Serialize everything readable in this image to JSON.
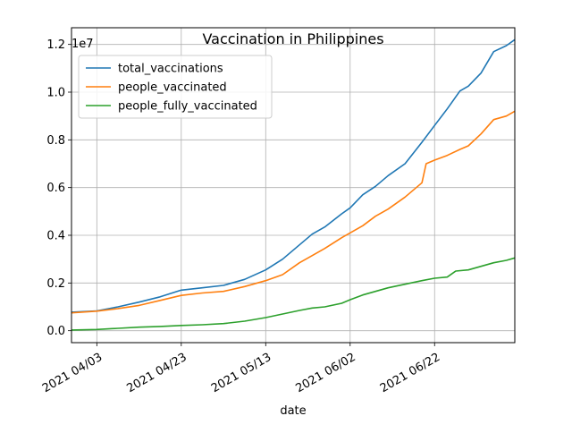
{
  "chart_data": {
    "type": "line",
    "title": "Vaccination in Philippines",
    "xlabel": "date",
    "ylabel": "",
    "y_offset_label": "1e7",
    "x_range": [
      "2021-03-28",
      "2021-07-11"
    ],
    "ylim": [
      -0.05,
      1.27
    ],
    "x_ticks": [
      {
        "date": "2021-04-03",
        "label": "2021 04/03"
      },
      {
        "date": "2021-04-23",
        "label": "2021 04/23"
      },
      {
        "date": "2021-05-13",
        "label": "2021 05/13"
      },
      {
        "date": "2021-06-02",
        "label": "2021 06/02"
      },
      {
        "date": "2021-06-22",
        "label": "2021 06/22"
      }
    ],
    "y_ticks": [
      {
        "value": 0.0,
        "label": "0.0"
      },
      {
        "value": 0.2,
        "label": "0.2"
      },
      {
        "value": 0.4,
        "label": "0.4"
      },
      {
        "value": 0.6,
        "label": "0.6"
      },
      {
        "value": 0.8,
        "label": "0.8"
      },
      {
        "value": 1.0,
        "label": "1.0"
      },
      {
        "value": 1.2,
        "label": "1.2"
      }
    ],
    "grid": true,
    "legend_position": "top-left",
    "series": [
      {
        "name": "total_vaccinations",
        "color": "#1f77b4",
        "points": [
          [
            "2021-03-28",
            0.078
          ],
          [
            "2021-04-03",
            0.083
          ],
          [
            "2021-04-08",
            0.1
          ],
          [
            "2021-04-13",
            0.12
          ],
          [
            "2021-04-18",
            0.142
          ],
          [
            "2021-04-23",
            0.17
          ],
          [
            "2021-04-28",
            0.18
          ],
          [
            "2021-05-03",
            0.19
          ],
          [
            "2021-05-08",
            0.215
          ],
          [
            "2021-05-13",
            0.255
          ],
          [
            "2021-05-17",
            0.3
          ],
          [
            "2021-05-21",
            0.36
          ],
          [
            "2021-05-24",
            0.405
          ],
          [
            "2021-05-27",
            0.435
          ],
          [
            "2021-05-31",
            0.49
          ],
          [
            "2021-06-02",
            0.515
          ],
          [
            "2021-06-05",
            0.57
          ],
          [
            "2021-06-08",
            0.605
          ],
          [
            "2021-06-11",
            0.65
          ],
          [
            "2021-06-15",
            0.7
          ],
          [
            "2021-06-19",
            0.79
          ],
          [
            "2021-06-22",
            0.86
          ],
          [
            "2021-06-25",
            0.93
          ],
          [
            "2021-06-28",
            1.005
          ],
          [
            "2021-06-30",
            1.025
          ],
          [
            "2021-07-03",
            1.08
          ],
          [
            "2021-07-06",
            1.17
          ],
          [
            "2021-07-09",
            1.195
          ],
          [
            "2021-07-11",
            1.22
          ]
        ]
      },
      {
        "name": "people_vaccinated",
        "color": "#ff7f0e",
        "points": [
          [
            "2021-03-28",
            0.075
          ],
          [
            "2021-04-03",
            0.082
          ],
          [
            "2021-04-08",
            0.093
          ],
          [
            "2021-04-13",
            0.106
          ],
          [
            "2021-04-18",
            0.127
          ],
          [
            "2021-04-23",
            0.148
          ],
          [
            "2021-04-28",
            0.158
          ],
          [
            "2021-05-03",
            0.165
          ],
          [
            "2021-05-08",
            0.185
          ],
          [
            "2021-05-13",
            0.21
          ],
          [
            "2021-05-17",
            0.235
          ],
          [
            "2021-05-21",
            0.285
          ],
          [
            "2021-05-24",
            0.315
          ],
          [
            "2021-05-27",
            0.345
          ],
          [
            "2021-05-31",
            0.39
          ],
          [
            "2021-06-02",
            0.41
          ],
          [
            "2021-06-05",
            0.44
          ],
          [
            "2021-06-08",
            0.48
          ],
          [
            "2021-06-11",
            0.51
          ],
          [
            "2021-06-15",
            0.56
          ],
          [
            "2021-06-19",
            0.62
          ],
          [
            "2021-06-20",
            0.7
          ],
          [
            "2021-06-22",
            0.715
          ],
          [
            "2021-06-25",
            0.735
          ],
          [
            "2021-06-28",
            0.76
          ],
          [
            "2021-06-30",
            0.775
          ],
          [
            "2021-07-03",
            0.825
          ],
          [
            "2021-07-06",
            0.885
          ],
          [
            "2021-07-09",
            0.9
          ],
          [
            "2021-07-11",
            0.92
          ]
        ]
      },
      {
        "name": "people_fully_vaccinated",
        "color": "#2ca02c",
        "points": [
          [
            "2021-03-28",
            0.003
          ],
          [
            "2021-04-03",
            0.005
          ],
          [
            "2021-04-08",
            0.01
          ],
          [
            "2021-04-13",
            0.015
          ],
          [
            "2021-04-18",
            0.018
          ],
          [
            "2021-04-23",
            0.022
          ],
          [
            "2021-04-28",
            0.025
          ],
          [
            "2021-05-03",
            0.03
          ],
          [
            "2021-05-08",
            0.04
          ],
          [
            "2021-05-13",
            0.055
          ],
          [
            "2021-05-17",
            0.07
          ],
          [
            "2021-05-21",
            0.085
          ],
          [
            "2021-05-24",
            0.095
          ],
          [
            "2021-05-27",
            0.1
          ],
          [
            "2021-05-31",
            0.115
          ],
          [
            "2021-06-02",
            0.13
          ],
          [
            "2021-06-05",
            0.15
          ],
          [
            "2021-06-08",
            0.165
          ],
          [
            "2021-06-11",
            0.18
          ],
          [
            "2021-06-15",
            0.195
          ],
          [
            "2021-06-19",
            0.21
          ],
          [
            "2021-06-22",
            0.22
          ],
          [
            "2021-06-25",
            0.225
          ],
          [
            "2021-06-27",
            0.25
          ],
          [
            "2021-06-30",
            0.255
          ],
          [
            "2021-07-03",
            0.27
          ],
          [
            "2021-07-06",
            0.285
          ],
          [
            "2021-07-09",
            0.295
          ],
          [
            "2021-07-11",
            0.305
          ]
        ]
      }
    ]
  }
}
